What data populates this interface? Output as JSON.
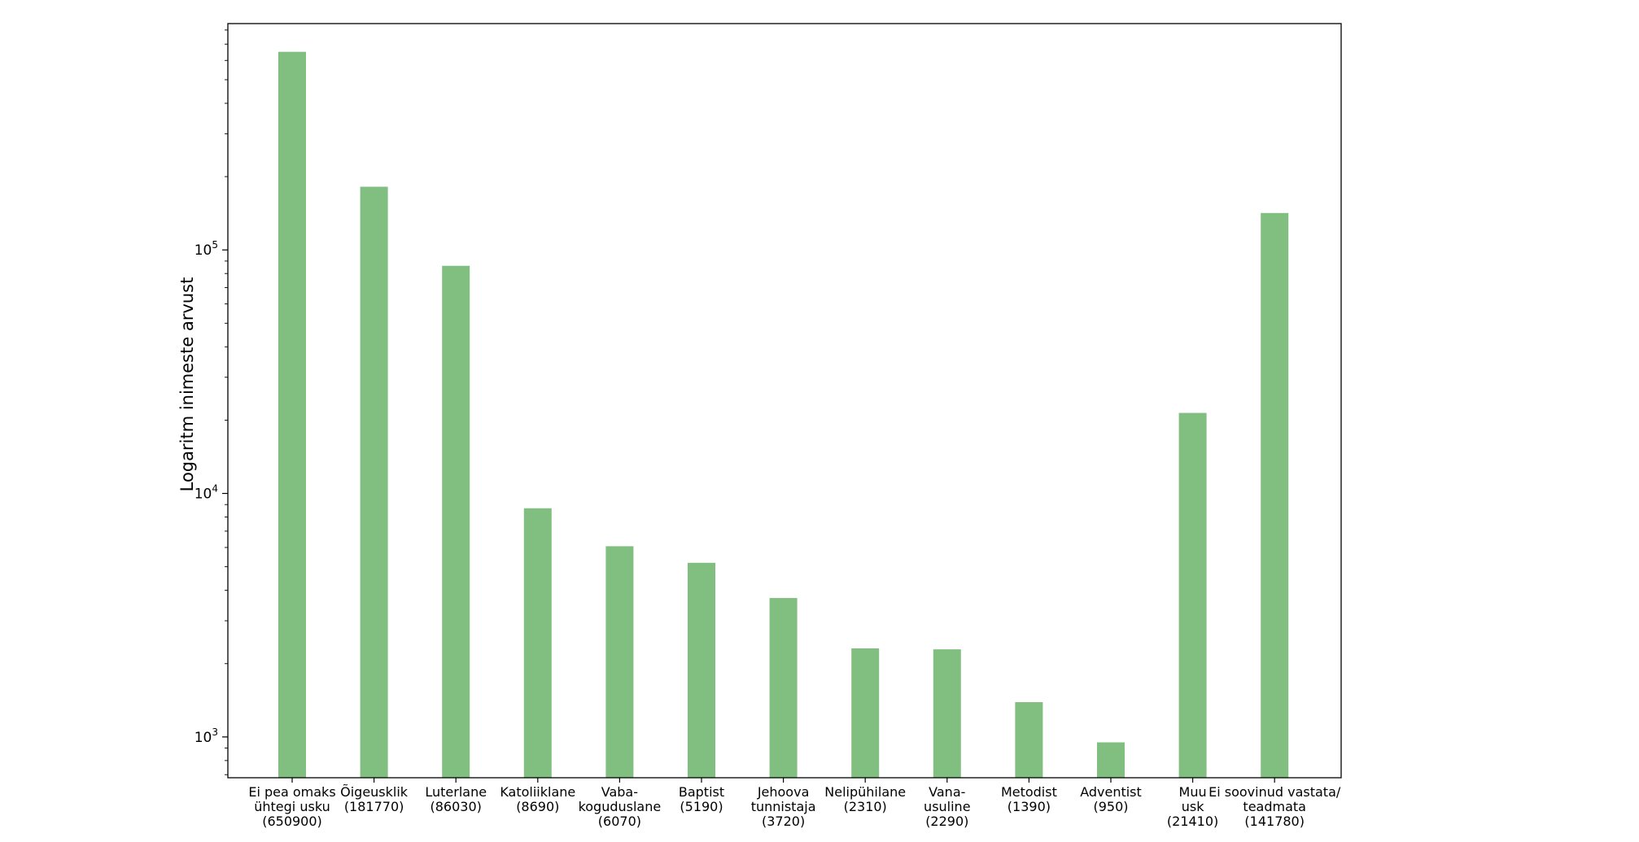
{
  "chart_data": {
    "type": "bar",
    "title": "",
    "xlabel": "",
    "ylabel": "Logaritm inimeste arvust",
    "yscale": "log",
    "ylim": [
      680,
      850000
    ],
    "yticks": [
      {
        "value": 1000,
        "base": "10",
        "exp": "3"
      },
      {
        "value": 10000,
        "base": "10",
        "exp": "4"
      },
      {
        "value": 100000,
        "base": "10",
        "exp": "5"
      }
    ],
    "bar_color": "#80bf80",
    "grid": false,
    "categories": [
      {
        "lines": [
          "Ei pea omaks",
          "ühtegi usku",
          "(650900)"
        ]
      },
      {
        "lines": [
          "Õigeusklik",
          "(181770)"
        ]
      },
      {
        "lines": [
          "Luterlane",
          "(86030)"
        ]
      },
      {
        "lines": [
          "Katoliiklane",
          "(8690)"
        ]
      },
      {
        "lines": [
          "Vaba-",
          "koguduslane",
          "(6070)"
        ]
      },
      {
        "lines": [
          "Baptist",
          "(5190)"
        ]
      },
      {
        "lines": [
          "Jehoova",
          "tunnistaja",
          "(3720)"
        ]
      },
      {
        "lines": [
          "Nelipühilane",
          "(2310)"
        ]
      },
      {
        "lines": [
          "Vana-",
          "usuline",
          "(2290)"
        ]
      },
      {
        "lines": [
          "Metodist",
          "(1390)"
        ]
      },
      {
        "lines": [
          "Adventist",
          "(950)"
        ]
      },
      {
        "lines": [
          "Muu",
          "usk",
          "(21410)"
        ]
      },
      {
        "lines": [
          "Ei soovinud vastata/",
          "teadmata",
          "(141780)"
        ]
      }
    ],
    "values": [
      650900,
      181770,
      86030,
      8690,
      6070,
      5190,
      3720,
      2310,
      2290,
      1390,
      950,
      21410,
      141780
    ]
  }
}
